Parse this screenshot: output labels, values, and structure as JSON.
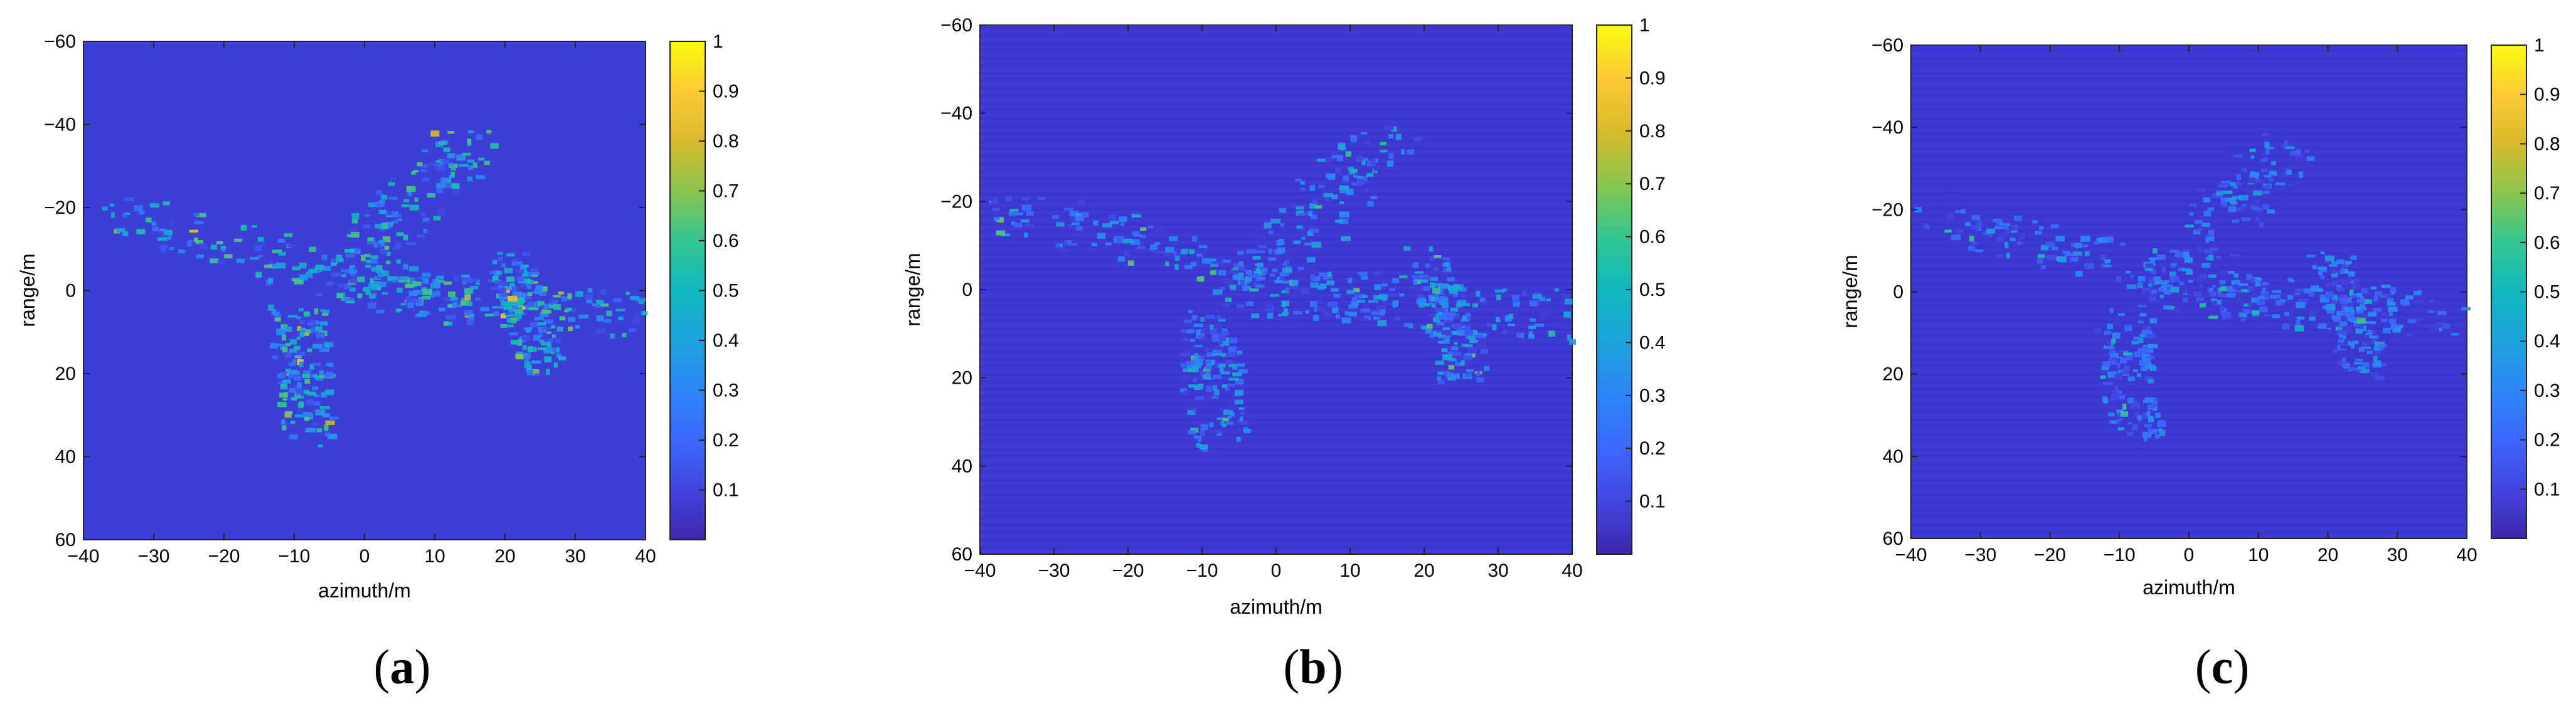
{
  "figure": {
    "panels": [
      {
        "id": "a",
        "caption_prefix": "(",
        "caption_letter": "a",
        "caption_suffix": ")"
      },
      {
        "id": "b",
        "caption_prefix": "(",
        "caption_letter": "b",
        "caption_suffix": ")"
      },
      {
        "id": "c",
        "caption_prefix": "(",
        "caption_letter": "c",
        "caption_suffix": ")"
      }
    ]
  },
  "chart_data": [
    {
      "type": "heatmap",
      "panel": "a",
      "title": "",
      "xlabel": "azimuth/m",
      "ylabel": "range/m",
      "xlim": [
        -40,
        40
      ],
      "ylim": [
        60,
        -60
      ],
      "x_ticks": [
        -40,
        -30,
        -20,
        -10,
        0,
        10,
        20,
        30,
        40
      ],
      "y_ticks": [
        -60,
        -40,
        -20,
        0,
        20,
        40,
        60
      ],
      "colorbar": {
        "range": [
          0,
          1
        ],
        "ticks": [
          0.1,
          0.2,
          0.3,
          0.4,
          0.5,
          0.6,
          0.7,
          0.8,
          0.9,
          1
        ],
        "tick_labels": [
          "0.1",
          "0.2",
          "0.3",
          "0.4",
          "0.5",
          "0.6",
          "0.7",
          "0.8",
          "0.9",
          "1"
        ],
        "colormap": "parula"
      },
      "background_level": 0.1,
      "target_intensity": 0.55,
      "colors": {
        "low": "#3e26a8",
        "high": "#f9fb0e"
      }
    },
    {
      "type": "heatmap",
      "panel": "b",
      "title": "",
      "xlabel": "azimuth/m",
      "ylabel": "range/m",
      "xlim": [
        -40,
        40
      ],
      "ylim": [
        60,
        -60
      ],
      "x_ticks": [
        -40,
        -30,
        -20,
        -10,
        0,
        10,
        20,
        30,
        40
      ],
      "y_ticks": [
        -60,
        -40,
        -20,
        0,
        20,
        40,
        60
      ],
      "colorbar": {
        "range": [
          0,
          1
        ],
        "ticks": [
          0.1,
          0.2,
          0.3,
          0.4,
          0.5,
          0.6,
          0.7,
          0.8,
          0.9,
          1
        ],
        "tick_labels": [
          "0.1",
          "0.2",
          "0.3",
          "0.4",
          "0.5",
          "0.6",
          "0.7",
          "0.8",
          "0.9",
          "1"
        ],
        "colormap": "parula"
      },
      "background_level": 0.06,
      "target_intensity": 0.4,
      "colors": {
        "low": "#3e26a8",
        "high": "#f9fb0e"
      }
    },
    {
      "type": "heatmap",
      "panel": "c",
      "title": "",
      "xlabel": "azimuth/m",
      "ylabel": "range/m",
      "xlim": [
        -40,
        40
      ],
      "ylim": [
        60,
        -60
      ],
      "x_ticks": [
        -40,
        -30,
        -20,
        -10,
        0,
        10,
        20,
        30,
        40
      ],
      "y_ticks": [
        -60,
        -40,
        -20,
        0,
        20,
        40,
        60
      ],
      "colorbar": {
        "range": [
          0,
          1
        ],
        "ticks": [
          0.1,
          0.2,
          0.3,
          0.4,
          0.5,
          0.6,
          0.7,
          0.8,
          0.9,
          1
        ],
        "tick_labels": [
          "0.1",
          "0.2",
          "0.3",
          "0.4",
          "0.5",
          "0.6",
          "0.7",
          "0.8",
          "0.9",
          "1"
        ],
        "colormap": "parula"
      },
      "background_level": 0.05,
      "target_intensity": 0.32,
      "colors": {
        "low": "#3e26a8",
        "high": "#f9fb0e"
      }
    }
  ]
}
